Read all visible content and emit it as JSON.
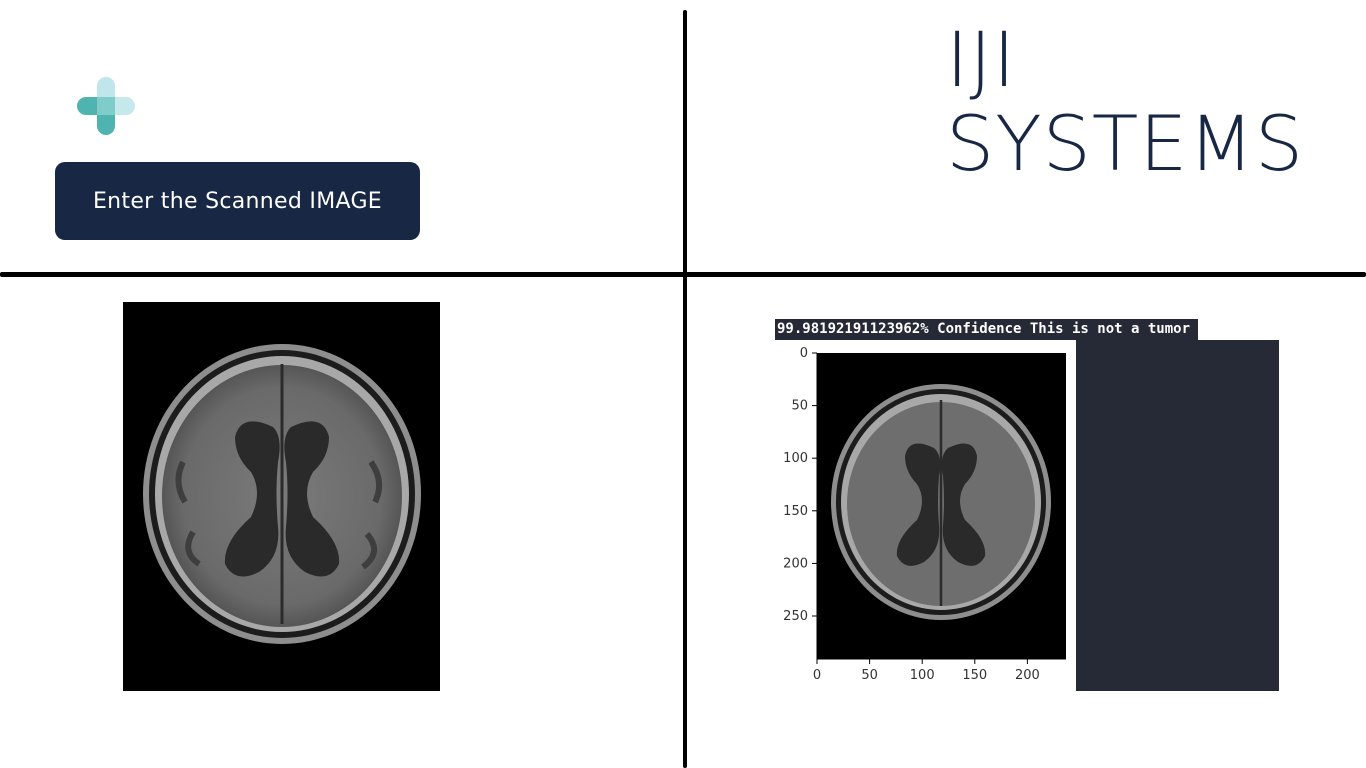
{
  "app": {
    "button_label": "Enter the Scanned IMAGE",
    "brand_line1": "IJI",
    "brand_line2": "SYSTEMS",
    "accent_colors": {
      "navy": "#172744",
      "teal": "#4fb3b0",
      "teal_light": "#bfe6ea",
      "dark_panel": "#262a36"
    },
    "icons": {
      "logo": "medical-cross-logo"
    }
  },
  "result": {
    "banner_text": "99.98192191123962% Confidence This is not a tumor",
    "plot": {
      "x_ticks": [
        "0",
        "50",
        "100",
        "150",
        "200"
      ],
      "y_ticks": [
        "0",
        "50",
        "100",
        "150",
        "200",
        "250"
      ]
    }
  }
}
